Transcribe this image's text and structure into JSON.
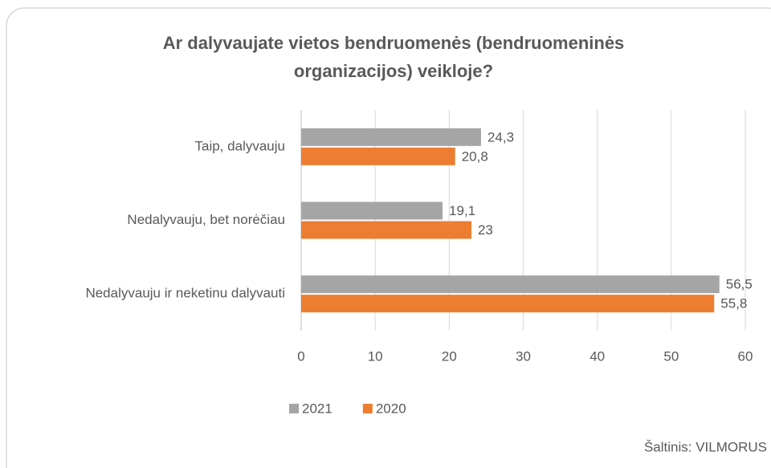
{
  "chart_data": {
    "type": "bar",
    "orientation": "horizontal",
    "title": "Ar dalyvaujate vietos bendruomenės (bendruomeninės organizacijos) veikloje?",
    "categories": [
      "Taip, dalyvauju",
      "Nedalyvauju, bet norėčiau",
      "Nedalyvauju ir neketinu dalyvauti"
    ],
    "series": [
      {
        "name": "2021",
        "color": "#a5a5a5",
        "values": [
          24.3,
          19.1,
          56.5
        ],
        "value_labels": [
          "24,3",
          "19,1",
          "56,5"
        ]
      },
      {
        "name": "2020",
        "color": "#ed7d31",
        "values": [
          20.8,
          23,
          55.8
        ],
        "value_labels": [
          "20,8",
          "23",
          "55,8"
        ]
      }
    ],
    "xlim": [
      0,
      60
    ],
    "xticks": [
      0,
      10,
      20,
      30,
      40,
      50,
      60
    ],
    "grid": true,
    "legend": "bottom",
    "source": "Šaltinis: VILMORUS"
  }
}
